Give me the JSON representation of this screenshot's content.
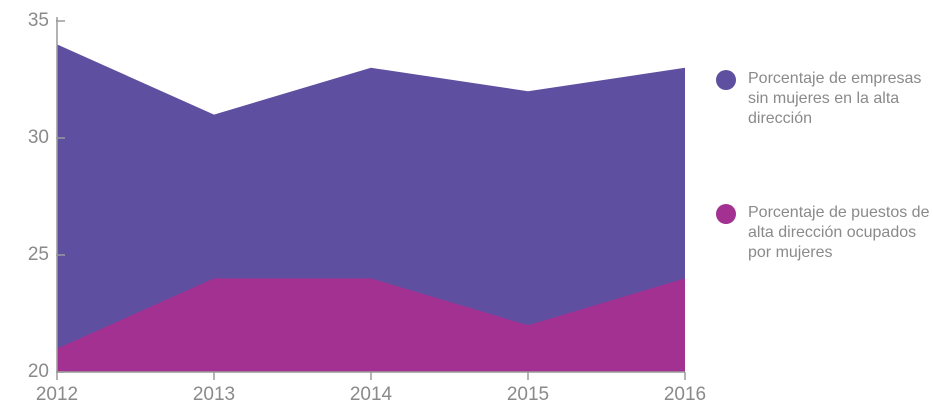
{
  "chart_data": {
    "type": "area",
    "x": [
      2012,
      2013,
      2014,
      2015,
      2016
    ],
    "series": [
      {
        "name": "Porcentaje de empresas sin mujeres en la alta dirección",
        "color": "#5f4fa0",
        "values": [
          34,
          31,
          33,
          32,
          33
        ]
      },
      {
        "name": "Porcentaje de puestos de alta dirección ocupados por mujeres",
        "color": "#a23192",
        "values": [
          21,
          24,
          24,
          22,
          24
        ]
      }
    ],
    "xlim": [
      2012,
      2016
    ],
    "xticks": [
      2012,
      2013,
      2014,
      2015,
      2016
    ],
    "ylim": [
      20,
      35
    ],
    "yticks": [
      20,
      25,
      30,
      35
    ],
    "legend": "right"
  }
}
